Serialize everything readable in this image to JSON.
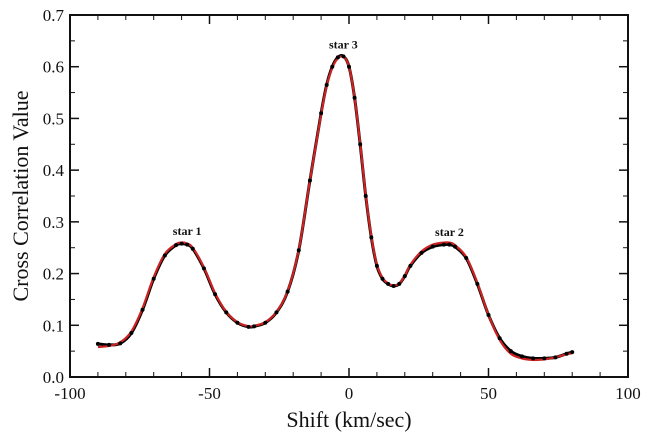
{
  "chart_data": {
    "type": "line",
    "xlabel": "Shift (km/sec)",
    "ylabel": "Cross Correlation Value",
    "xlim": [
      -100,
      100
    ],
    "ylim": [
      0.0,
      0.7
    ],
    "x_ticks": [
      -100,
      -50,
      0,
      50,
      100
    ],
    "y_ticks": [
      "0.0",
      "0.1",
      "0.2",
      "0.3",
      "0.4",
      "0.5",
      "0.6",
      "0.7"
    ],
    "grid": false,
    "colors": {
      "observed": "#000000",
      "fit": "#cc2222"
    },
    "annotations": [
      {
        "text": "star 1",
        "x": -58,
        "y": 0.275
      },
      {
        "text": "star 3",
        "x": -2,
        "y": 0.635
      },
      {
        "text": "star 2",
        "x": 36,
        "y": 0.273
      }
    ],
    "series": [
      {
        "style": "points-line",
        "color": "#000000",
        "x": [
          -90,
          -86,
          -82,
          -78,
          -74,
          -70,
          -66,
          -62,
          -60,
          -58,
          -56,
          -52,
          -48,
          -44,
          -40,
          -36,
          -34,
          -30,
          -26,
          -22,
          -18,
          -14,
          -10,
          -8,
          -6,
          -4,
          -2,
          0,
          2,
          4,
          6,
          8,
          10,
          12,
          14,
          16,
          18,
          20,
          22,
          26,
          30,
          34,
          36,
          38,
          42,
          46,
          50,
          54,
          58,
          62,
          66,
          70,
          74,
          78,
          80
        ],
        "y": [
          0.064,
          0.062,
          0.065,
          0.085,
          0.13,
          0.19,
          0.235,
          0.255,
          0.258,
          0.256,
          0.248,
          0.21,
          0.16,
          0.125,
          0.105,
          0.097,
          0.098,
          0.105,
          0.125,
          0.165,
          0.245,
          0.38,
          0.51,
          0.565,
          0.6,
          0.618,
          0.62,
          0.6,
          0.54,
          0.45,
          0.35,
          0.27,
          0.215,
          0.19,
          0.18,
          0.176,
          0.18,
          0.195,
          0.215,
          0.24,
          0.252,
          0.256,
          0.256,
          0.252,
          0.23,
          0.18,
          0.12,
          0.075,
          0.05,
          0.04,
          0.036,
          0.036,
          0.038,
          0.045,
          0.048
        ]
      },
      {
        "style": "line",
        "color": "#cc2222",
        "x": [
          -90,
          -86,
          -82,
          -78,
          -74,
          -70,
          -66,
          -62,
          -60,
          -58,
          -56,
          -52,
          -48,
          -44,
          -40,
          -36,
          -34,
          -30,
          -26,
          -22,
          -18,
          -14,
          -10,
          -8,
          -6,
          -4,
          -2,
          0,
          2,
          4,
          6,
          8,
          10,
          12,
          14,
          16,
          18,
          20,
          22,
          26,
          30,
          34,
          36,
          38,
          42,
          46,
          50,
          54,
          58,
          62,
          66,
          70,
          74,
          78,
          80
        ],
        "y": [
          0.058,
          0.06,
          0.067,
          0.088,
          0.133,
          0.193,
          0.238,
          0.257,
          0.26,
          0.258,
          0.25,
          0.212,
          0.162,
          0.126,
          0.106,
          0.098,
          0.099,
          0.106,
          0.126,
          0.166,
          0.246,
          0.38,
          0.508,
          0.563,
          0.598,
          0.616,
          0.619,
          0.6,
          0.54,
          0.452,
          0.352,
          0.272,
          0.217,
          0.192,
          0.181,
          0.177,
          0.181,
          0.196,
          0.217,
          0.243,
          0.256,
          0.26,
          0.26,
          0.255,
          0.232,
          0.182,
          0.12,
          0.072,
          0.045,
          0.036,
          0.033,
          0.034,
          0.038,
          0.044,
          0.046
        ]
      }
    ]
  }
}
